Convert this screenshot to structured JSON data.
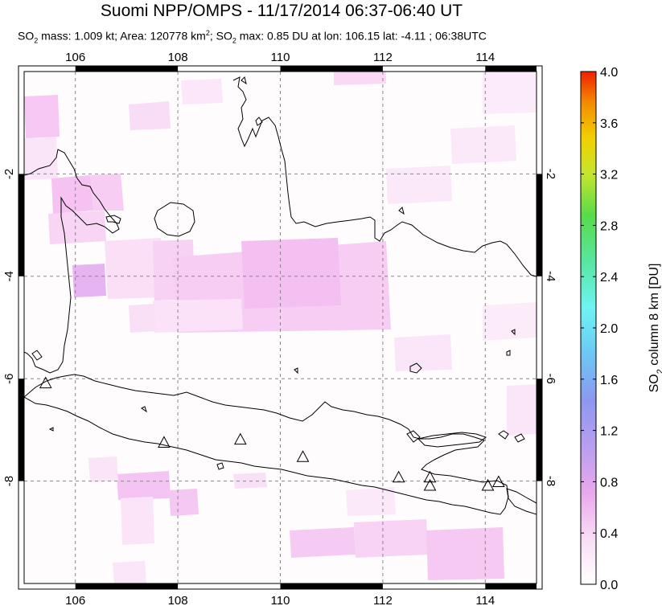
{
  "header": {
    "title": "Suomi NPP/OMPS - 11/17/2014 06:37-06:40 UT",
    "subtitle_prefix": "SO",
    "subtitle_sub1": "2",
    "subtitle_part2": " mass: 1.009 kt; Area: 120778 km",
    "subtitle_sup": "2",
    "subtitle_part3": "; SO",
    "subtitle_sub2": "2",
    "subtitle_part4": " max: 0.85 DU at lon: 106.15 lat: -4.11 ; 06:38UTC"
  },
  "map": {
    "lon_range": [
      105,
      115
    ],
    "lat_range": [
      -10,
      0
    ],
    "lon_ticks": [
      106,
      108,
      110,
      112,
      114
    ],
    "lat_ticks": [
      -2,
      -4,
      -6,
      -8
    ],
    "lon_tick_labels": [
      "106",
      "108",
      "110",
      "112",
      "114"
    ],
    "lat_tick_labels": [
      "-2",
      "-4",
      "-6",
      "-8"
    ],
    "gridlines": true,
    "volcanoes": [
      {
        "lon": 105.42,
        "lat": -6.1
      },
      {
        "lon": 107.73,
        "lat": -7.26
      },
      {
        "lon": 109.22,
        "lat": -7.2
      },
      {
        "lon": 110.44,
        "lat": -7.54
      },
      {
        "lon": 112.31,
        "lat": -7.94
      },
      {
        "lon": 112.92,
        "lat": -7.94
      },
      {
        "lon": 112.92,
        "lat": -8.1
      },
      {
        "lon": 114.05,
        "lat": -8.1
      },
      {
        "lon": 114.26,
        "lat": -8.03
      }
    ]
  },
  "colorbar": {
    "label_prefix": "SO",
    "label_sub": "2",
    "label_suffix": " column 8 km [DU]",
    "range": [
      0.0,
      4.0
    ],
    "tick_labels": [
      "0.0",
      "0.4",
      "0.8",
      "1.2",
      "1.6",
      "2.0",
      "2.4",
      "2.8",
      "3.2",
      "3.6",
      "4.0"
    ],
    "tick_values": [
      0.0,
      0.4,
      0.8,
      1.2,
      1.6,
      2.0,
      2.4,
      2.8,
      3.2,
      3.6,
      4.0
    ],
    "colors": [
      "#ffffff",
      "#f7c8f4",
      "#c9a0ee",
      "#8f90ee",
      "#6fb4f4",
      "#6ff2f0",
      "#55e8a3",
      "#4cd94c",
      "#d4e82a",
      "#f5c800",
      "#f47a00",
      "#ee2200"
    ]
  }
}
